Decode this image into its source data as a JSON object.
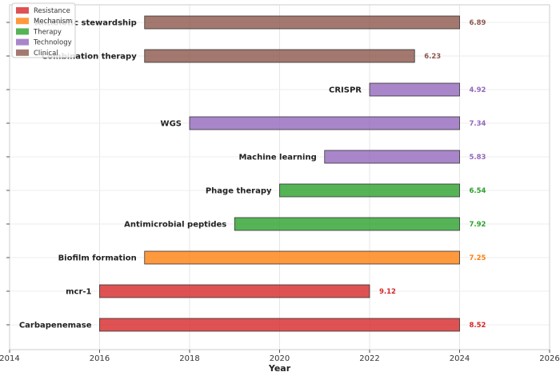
{
  "chart_data": {
    "type": "bar",
    "orientation": "horizontal-range",
    "xlabel": "Year",
    "xlim": [
      2014,
      2026
    ],
    "xticks": [
      2014,
      2016,
      2018,
      2020,
      2022,
      2024,
      2026
    ],
    "grid": true,
    "legend": {
      "placement": "top-left",
      "entries": [
        {
          "name": "Resistance",
          "color": "#d62728"
        },
        {
          "name": "Mechanism",
          "color": "#ff7f0e"
        },
        {
          "name": "Therapy",
          "color": "#2ca02c"
        },
        {
          "name": "Technology",
          "color": "#9467bd"
        },
        {
          "name": "Clinical",
          "color": "#8c564b"
        }
      ]
    },
    "colors": {
      "Resistance": "#d62728",
      "Mechanism": "#ff7f0e",
      "Therapy": "#2ca02c",
      "Technology": "#9467bd",
      "Clinical": "#8c564b"
    },
    "items": [
      {
        "label": "Carbapenemase",
        "start": 2016,
        "end": 2024,
        "value": "8.52",
        "group": "Resistance"
      },
      {
        "label": "mcr-1",
        "start": 2016,
        "end": 2022,
        "value": "9.12",
        "group": "Resistance"
      },
      {
        "label": "Biofilm formation",
        "start": 2017,
        "end": 2024,
        "value": "7.25",
        "group": "Mechanism"
      },
      {
        "label": "Antimicrobial peptides",
        "start": 2019,
        "end": 2024,
        "value": "7.92",
        "group": "Therapy"
      },
      {
        "label": "Phage therapy",
        "start": 2020,
        "end": 2024,
        "value": "6.54",
        "group": "Therapy"
      },
      {
        "label": "Machine learning",
        "start": 2021,
        "end": 2024,
        "value": "5.83",
        "group": "Technology"
      },
      {
        "label": "WGS",
        "start": 2018,
        "end": 2024,
        "value": "7.34",
        "group": "Technology"
      },
      {
        "label": "CRISPR",
        "start": 2022,
        "end": 2024,
        "value": "4.92",
        "group": "Technology"
      },
      {
        "label": "Combination therapy",
        "start": 2017,
        "end": 2023,
        "value": "6.23",
        "group": "Clinical"
      },
      {
        "label": "Antibiotic stewardship",
        "start": 2017,
        "end": 2024,
        "value": "6.89",
        "group": "Clinical"
      }
    ]
  }
}
